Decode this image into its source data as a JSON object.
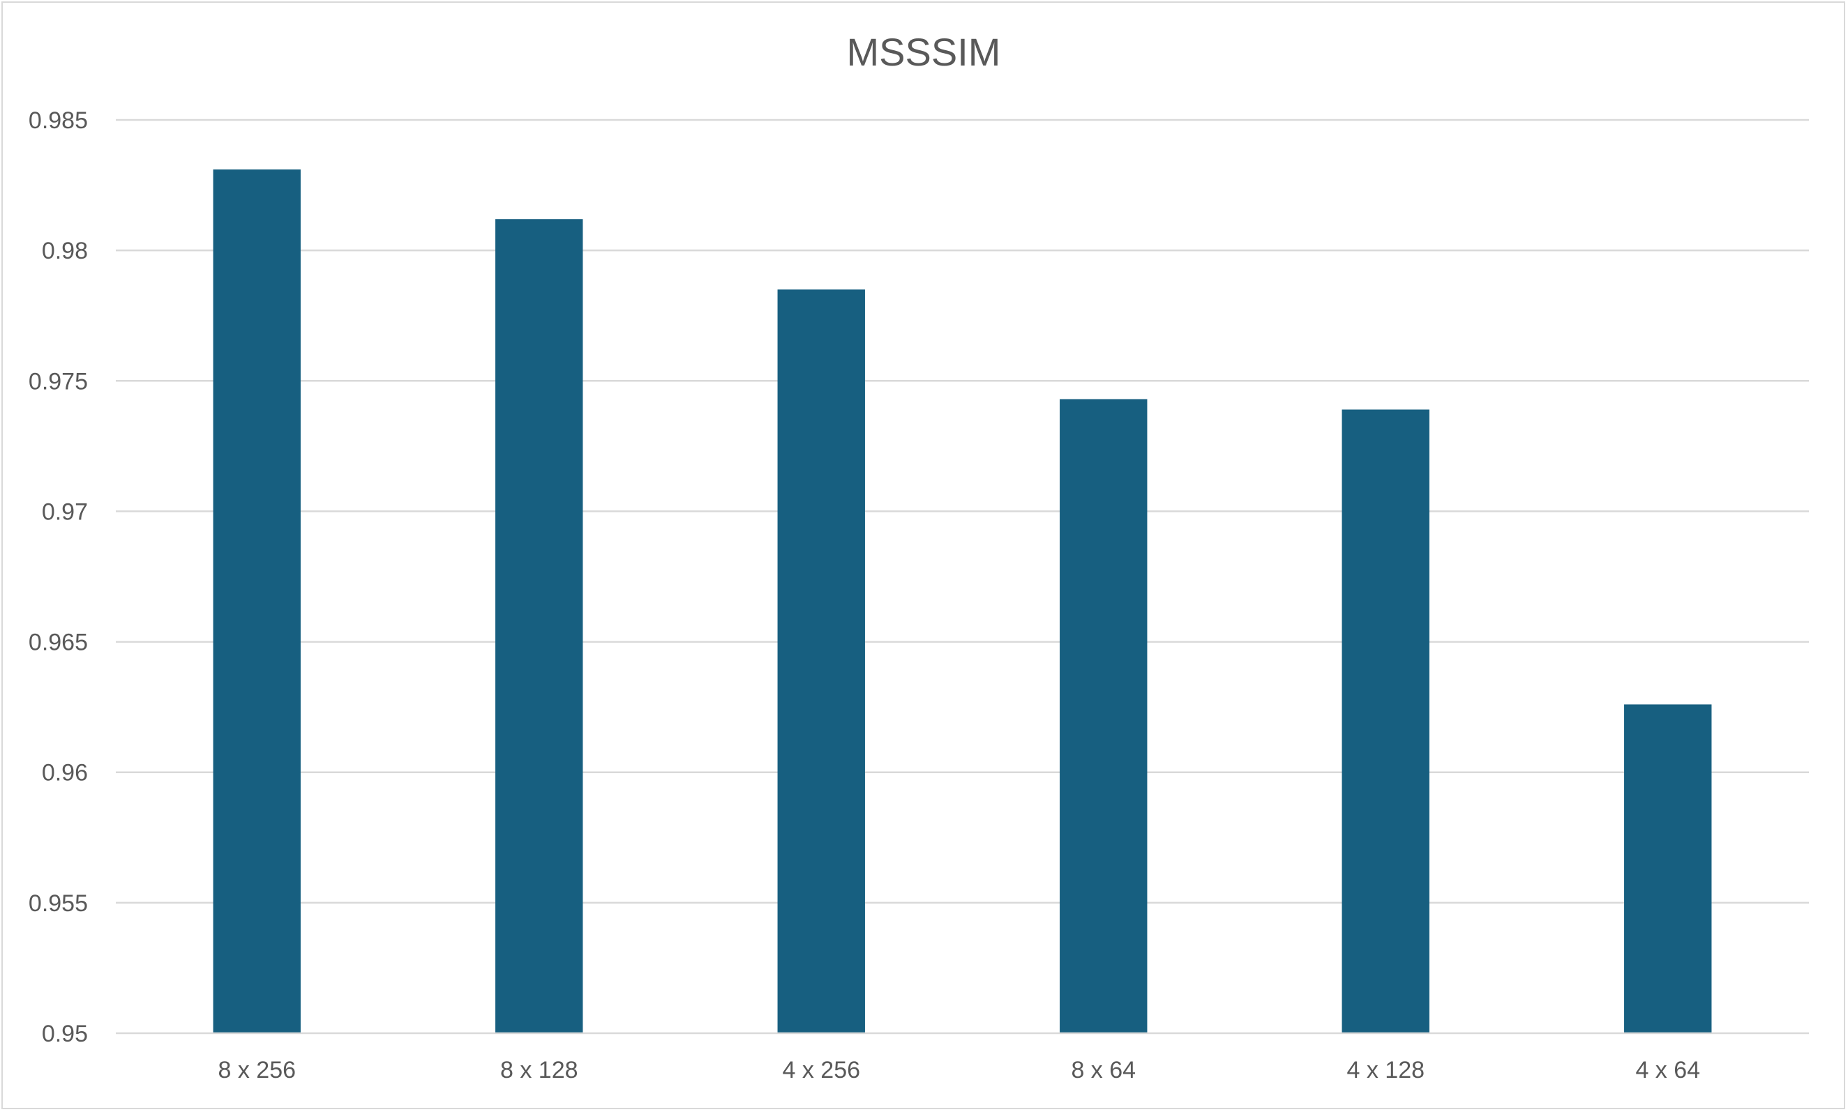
{
  "chart_data": {
    "type": "bar",
    "title": "MSSSIM",
    "xlabel": "",
    "ylabel": "",
    "categories": [
      "8 x 256",
      "8 x 128",
      "4 x 256",
      "8 x 64",
      "4 x 128",
      "4 x 64"
    ],
    "series": [
      {
        "values": [
          0.9831,
          0.9812,
          0.9785,
          0.9743,
          0.9739,
          0.9626
        ]
      }
    ],
    "ylim": [
      0.95,
      0.985
    ],
    "yticks": [
      0.95,
      0.955,
      0.96,
      0.965,
      0.97,
      0.975,
      0.98,
      0.985
    ],
    "ytick_labels": [
      "0.95",
      "0.955",
      "0.96",
      "0.965",
      "0.97",
      "0.975",
      "0.98",
      "0.985"
    ],
    "grid": true,
    "legend": "none",
    "bar_color": "#175f80",
    "grid_color": "#d9d9d9",
    "text_color": "#595959"
  }
}
